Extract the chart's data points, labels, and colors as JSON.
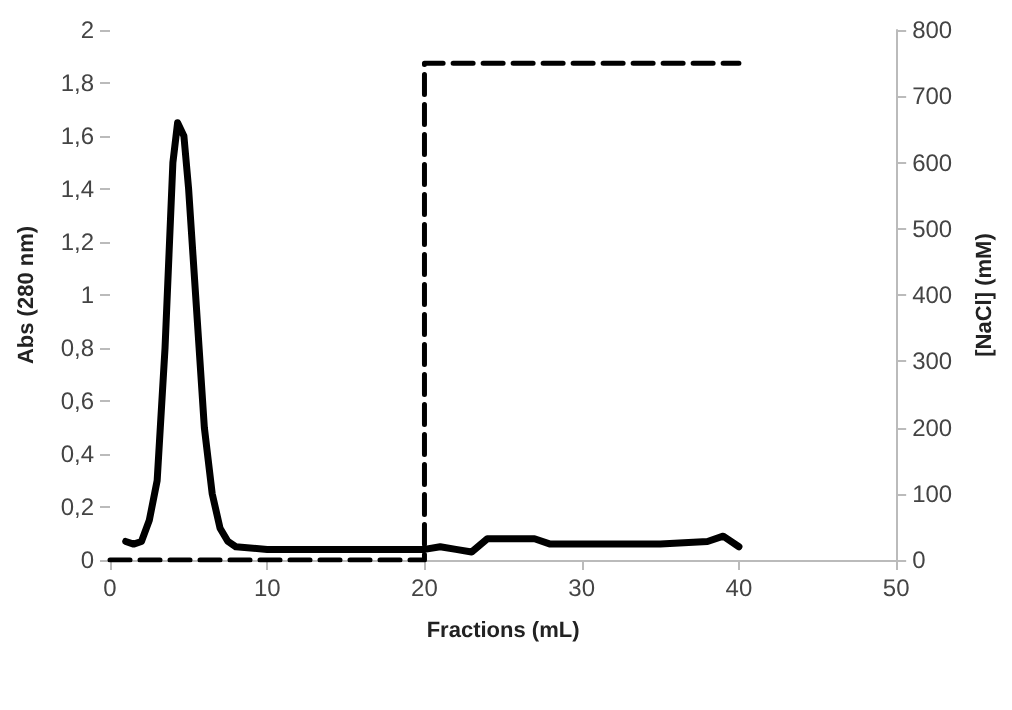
{
  "chart_data": {
    "type": "line",
    "xlabel": "Fractions (mL)",
    "ylabel": "Abs (280 nm)",
    "y2label": "[NaCl] (mM)",
    "xlim": [
      0,
      50
    ],
    "xticks": [
      0,
      10,
      20,
      30,
      40,
      50
    ],
    "ylim": [
      0,
      2
    ],
    "yticks": [
      0,
      {
        "value": 0.2,
        "label": "0,2"
      },
      {
        "value": 0.4,
        "label": "0,4"
      },
      {
        "value": 0.6,
        "label": "0,6"
      },
      {
        "value": 0.8,
        "label": "0,8"
      },
      1,
      {
        "value": 1.2,
        "label": "1,2"
      },
      {
        "value": 1.4,
        "label": "1,4"
      },
      {
        "value": 1.6,
        "label": "1,6"
      },
      {
        "value": 1.8,
        "label": "1,8"
      },
      2
    ],
    "y2lim": [
      0,
      800
    ],
    "y2ticks": [
      0,
      100,
      200,
      300,
      400,
      500,
      600,
      700,
      800
    ],
    "grid": false,
    "marker": "none",
    "series": [
      {
        "color": "#000000",
        "line_style": "solid",
        "x": [
          1,
          1.5,
          2,
          2.5,
          3,
          3.5,
          4,
          4.3,
          4.7,
          5,
          5.5,
          6,
          6.5,
          7,
          7.5,
          8,
          10,
          15,
          20,
          21,
          22,
          23,
          24,
          25,
          27,
          28,
          30,
          35,
          38,
          39,
          40
        ],
        "values": [
          0.07,
          0.06,
          0.07,
          0.15,
          0.3,
          0.8,
          1.5,
          1.65,
          1.6,
          1.4,
          0.95,
          0.5,
          0.25,
          0.12,
          0.07,
          0.05,
          0.04,
          0.04,
          0.04,
          0.05,
          0.04,
          0.03,
          0.08,
          0.08,
          0.08,
          0.06,
          0.06,
          0.06,
          0.07,
          0.09,
          0.05
        ]
      },
      {
        "color": "#000000",
        "line_style": "dashed",
        "axis": "y2",
        "x": [
          0,
          20,
          20,
          40
        ],
        "values": [
          0,
          0,
          750,
          750
        ]
      }
    ]
  }
}
